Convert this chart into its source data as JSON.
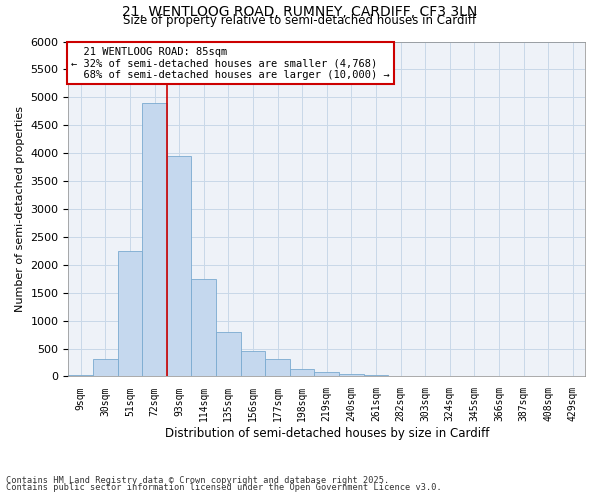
{
  "title_line1": "21, WENTLOOG ROAD, RUMNEY, CARDIFF, CF3 3LN",
  "title_line2": "Size of property relative to semi-detached houses in Cardiff",
  "xlabel": "Distribution of semi-detached houses by size in Cardiff",
  "ylabel": "Number of semi-detached properties",
  "footnote1": "Contains HM Land Registry data © Crown copyright and database right 2025.",
  "footnote2": "Contains public sector information licensed under the Open Government Licence v3.0.",
  "bar_color": "#c5d8ee",
  "bar_edge_color": "#7aaad0",
  "grid_color": "#c8d8e8",
  "annotation_box_color": "#cc0000",
  "vline_color": "#cc0000",
  "bins": [
    "9sqm",
    "30sqm",
    "51sqm",
    "72sqm",
    "93sqm",
    "114sqm",
    "135sqm",
    "156sqm",
    "177sqm",
    "198sqm",
    "219sqm",
    "240sqm",
    "261sqm",
    "282sqm",
    "303sqm",
    "324sqm",
    "345sqm",
    "366sqm",
    "387sqm",
    "408sqm",
    "429sqm"
  ],
  "values": [
    20,
    310,
    2250,
    4900,
    3950,
    1750,
    800,
    450,
    310,
    130,
    75,
    45,
    25,
    10,
    5,
    3,
    2,
    1,
    0,
    0,
    0
  ],
  "ylim": [
    0,
    6000
  ],
  "yticks": [
    0,
    500,
    1000,
    1500,
    2000,
    2500,
    3000,
    3500,
    4000,
    4500,
    5000,
    5500,
    6000
  ],
  "property_label": "21 WENTLOOG ROAD: 85sqm",
  "pct_smaller": 32,
  "pct_larger": 68,
  "n_smaller": 4768,
  "n_larger": 10000,
  "vline_bin_index": 3,
  "background_color": "#eef2f8"
}
